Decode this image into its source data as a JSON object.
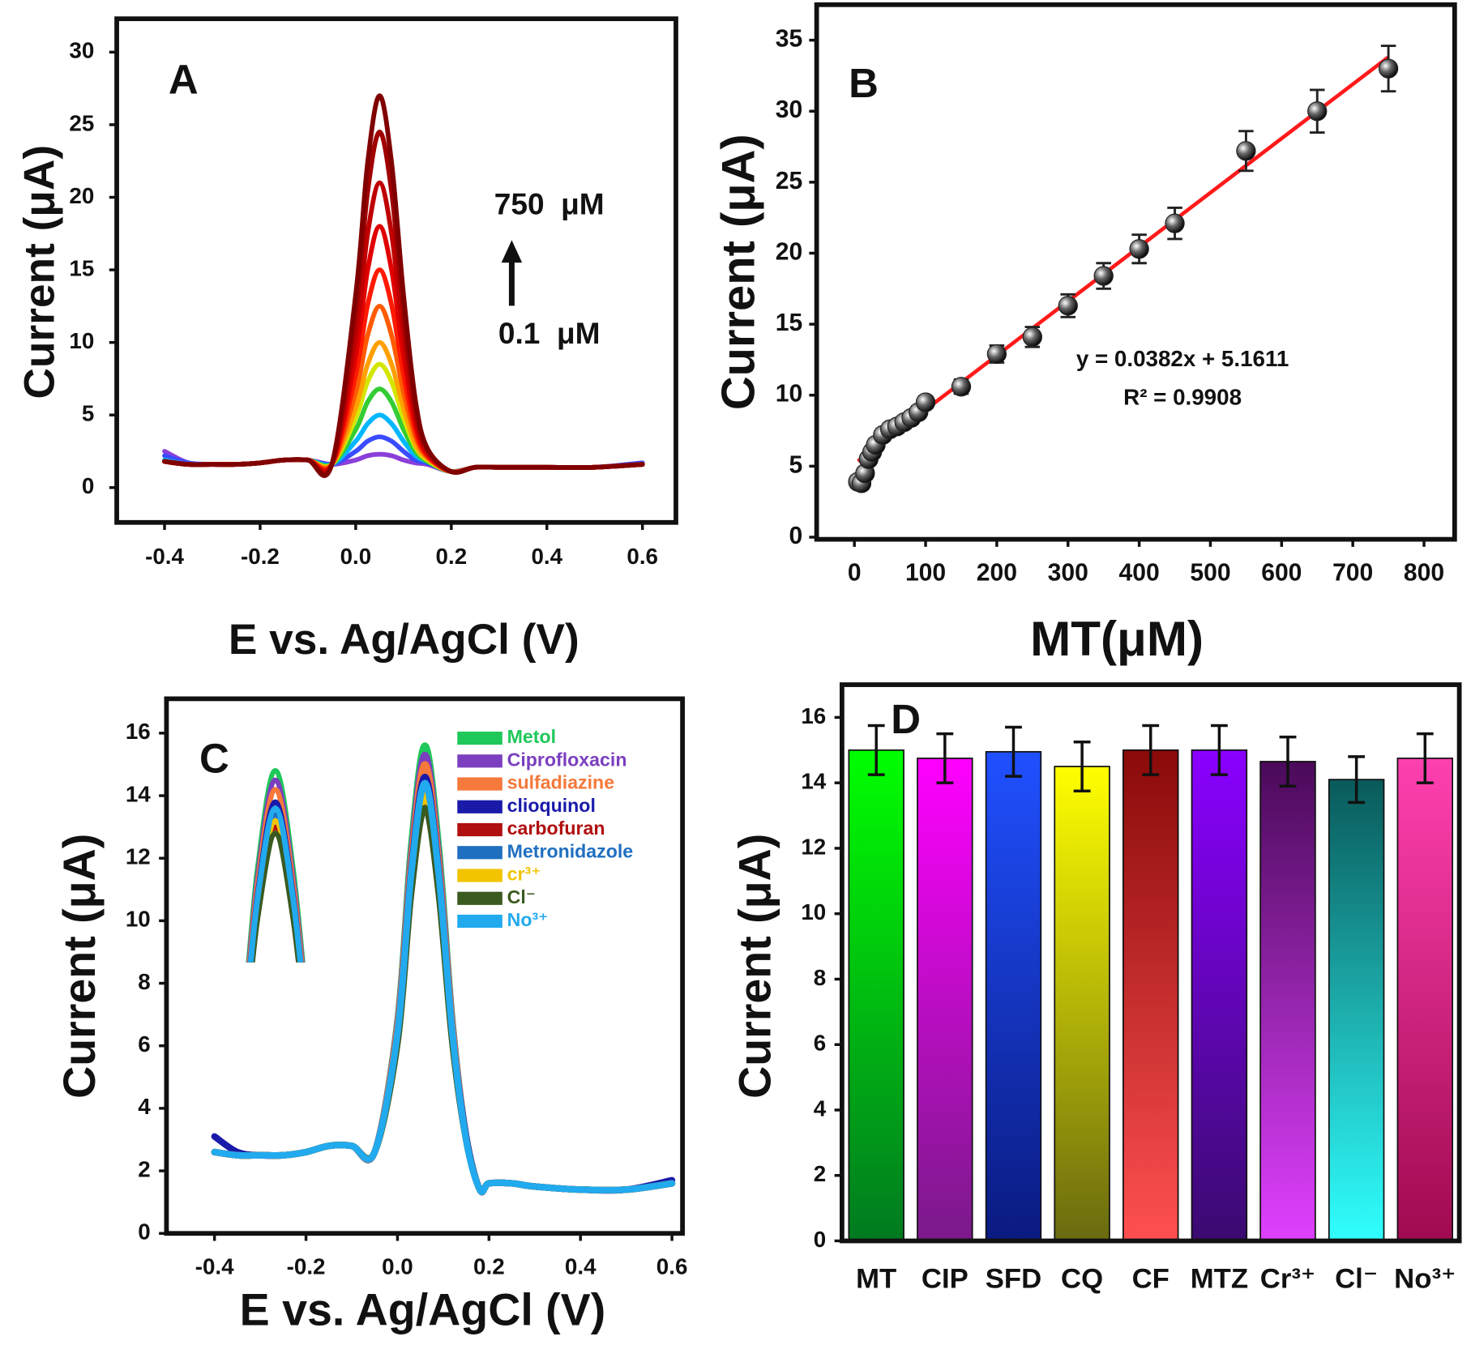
{
  "chart_data": [
    {
      "type": "line",
      "panel_label": "A",
      "x_label": "E vs. Ag/AgCl (V)",
      "y_label": "Current (μA)",
      "annotations": [
        "750  μM",
        "0.1  μM"
      ],
      "xlim": [
        -0.5,
        0.67
      ],
      "ylim": [
        -2.4,
        32.3
      ],
      "xticks": [
        -0.4,
        -0.2,
        {
          "value": 0,
          "label": "0.0"
        },
        0.2,
        0.4,
        0.6
      ],
      "yticks": [
        0,
        5,
        10,
        15,
        20,
        25,
        30
      ],
      "x": [
        -0.4,
        -0.35,
        -0.3,
        -0.25,
        -0.2,
        -0.15,
        -0.1,
        -0.05,
        0,
        0.025,
        0.05,
        0.075,
        0.1,
        0.125,
        0.15,
        0.2,
        0.25,
        0.3,
        0.4,
        0.5,
        0.6
      ],
      "series": [
        {
          "color": "#8b3fd9",
          "values": [
            2.5,
            1.7,
            1.6,
            1.6,
            1.7,
            1.9,
            1.9,
            1.6,
            1.9,
            2.2,
            2.3,
            2.2,
            1.9,
            1.7,
            1.6,
            1.1,
            1.4,
            1.4,
            1.4,
            1.4,
            1.7
          ]
        },
        {
          "color": "#3a4cff",
          "values": [
            2.2,
            1.7,
            1.6,
            1.6,
            1.7,
            1.9,
            1.9,
            1.6,
            2.5,
            3.2,
            3.5,
            3.2,
            2.5,
            1.9,
            1.7,
            1.1,
            1.4,
            1.4,
            1.4,
            1.4,
            1.7
          ]
        },
        {
          "color": "#00b7ff",
          "values": [
            1.9,
            1.6,
            1.6,
            1.6,
            1.7,
            1.9,
            1.9,
            1.6,
            3.2,
            4.4,
            5,
            4.4,
            3.2,
            2.2,
            1.8,
            1.1,
            1.4,
            1.4,
            1.4,
            1.4,
            1.6
          ]
        },
        {
          "color": "#33cc33",
          "values": [
            1.8,
            1.6,
            1.6,
            1.6,
            1.7,
            1.9,
            1.9,
            1.6,
            4.0,
            5.9,
            6.8,
            5.9,
            4.0,
            2.5,
            1.8,
            1.1,
            1.4,
            1.4,
            1.4,
            1.4,
            1.6
          ]
        },
        {
          "color": "#d4e600",
          "values": [
            1.8,
            1.6,
            1.6,
            1.6,
            1.7,
            1.9,
            1.9,
            1.6,
            4.8,
            7.3,
            8.5,
            7.3,
            4.8,
            2.8,
            1.9,
            1.1,
            1.4,
            1.4,
            1.4,
            1.4,
            1.6
          ]
        },
        {
          "color": "#ffa000",
          "values": [
            1.8,
            1.6,
            1.6,
            1.6,
            1.7,
            1.9,
            1.9,
            1.6,
            5.5,
            8.5,
            10,
            8.5,
            5.5,
            3.0,
            2.0,
            1.1,
            1.4,
            1.4,
            1.4,
            1.4,
            1.6
          ]
        },
        {
          "color": "#ff5a00",
          "values": [
            1.8,
            1.6,
            1.6,
            1.6,
            1.7,
            1.9,
            1.9,
            1.6,
            6.6,
            10.5,
            12.5,
            10.5,
            6.6,
            3.5,
            2.1,
            1.1,
            1.4,
            1.4,
            1.4,
            1.4,
            1.6
          ]
        },
        {
          "color": "#ff1a00",
          "values": [
            1.8,
            1.6,
            1.6,
            1.6,
            1.7,
            1.9,
            1.9,
            1.6,
            7.8,
            12.6,
            15,
            12.6,
            7.8,
            3.9,
            2.2,
            1.1,
            1.4,
            1.4,
            1.4,
            1.4,
            1.6
          ]
        },
        {
          "color": "#e00000",
          "values": [
            1.8,
            1.6,
            1.6,
            1.6,
            1.7,
            1.9,
            1.9,
            1.6,
            9.1,
            15.0,
            18,
            15.0,
            9.1,
            4.4,
            2.3,
            1.1,
            1.4,
            1.4,
            1.4,
            1.4,
            1.6
          ]
        },
        {
          "color": "#c00000",
          "values": [
            1.8,
            1.6,
            1.6,
            1.6,
            1.7,
            1.9,
            1.9,
            1.6,
            10.5,
            17.5,
            21,
            17.5,
            10.5,
            4.9,
            2.5,
            1.1,
            1.4,
            1.4,
            1.4,
            1.4,
            1.6
          ]
        },
        {
          "color": "#a00000",
          "values": [
            1.8,
            1.6,
            1.6,
            1.6,
            1.7,
            1.9,
            1.9,
            1.6,
            12.1,
            20.4,
            24.5,
            20.4,
            12.1,
            5.5,
            2.6,
            1.1,
            1.4,
            1.4,
            1.4,
            1.4,
            1.6
          ]
        },
        {
          "color": "#800000",
          "values": [
            1.8,
            1.6,
            1.6,
            1.6,
            1.7,
            1.9,
            1.9,
            1.6,
            13.3,
            22.4,
            27,
            22.4,
            13.3,
            6.0,
            2.7,
            1.1,
            1.4,
            1.4,
            1.4,
            1.4,
            1.6
          ]
        }
      ]
    },
    {
      "type": "scatter",
      "panel_label": "B",
      "x_label": "MT(μM)",
      "y_label": "Current (μA)",
      "annotations": [
        "y = 0.0382x + 5.1611",
        "R² = 0.9908"
      ],
      "xlim": [
        -53,
        843
      ],
      "ylim": [
        -0.15,
        37.5
      ],
      "xticks": [
        0,
        100,
        200,
        300,
        400,
        500,
        600,
        700,
        800
      ],
      "yticks": [
        0,
        5,
        10,
        15,
        20,
        25,
        30,
        35
      ],
      "color": "#222222",
      "x": [
        5,
        10,
        15,
        20,
        25,
        30,
        40,
        50,
        60,
        70,
        80,
        90,
        100,
        150,
        200,
        250,
        300,
        350,
        400,
        450,
        550,
        650,
        750
      ],
      "values": [
        3.9,
        3.8,
        4.5,
        5.5,
        6,
        6.5,
        7.2,
        7.6,
        7.8,
        8.1,
        8.4,
        8.8,
        9.5,
        10.6,
        12.9,
        14.1,
        16.3,
        18.4,
        20.3,
        22.1,
        27.2,
        30,
        33
      ],
      "errors": [
        0.4,
        0.4,
        0.4,
        0.4,
        0.4,
        0.4,
        0.4,
        0.4,
        0.4,
        0.4,
        0.4,
        0.4,
        0.4,
        0.5,
        0.6,
        0.7,
        0.8,
        0.9,
        1.0,
        1.1,
        1.4,
        1.5,
        1.6
      ],
      "fit": {
        "color": "#ff1a1a",
        "x": [
          5,
          750
        ],
        "values": [
          5.35,
          33.81
        ]
      }
    },
    {
      "type": "line",
      "panel_label": "C",
      "x_label": "E vs. Ag/AgCl (V)",
      "y_label": "Current (μA)",
      "xlim": [
        -0.505,
        0.623
      ],
      "ylim": [
        0,
        17.1
      ],
      "xticks": [
        -0.4,
        -0.2,
        {
          "value": 0,
          "label": "0.0"
        },
        0.2,
        0.4,
        0.6
      ],
      "yticks": [
        0,
        2,
        4,
        6,
        8,
        10,
        12,
        14,
        16
      ],
      "legend": true,
      "inset": true,
      "x": [
        -0.4,
        -0.35,
        -0.3,
        -0.25,
        -0.2,
        -0.15,
        -0.1,
        -0.05,
        0,
        0.03,
        0.06,
        0.09,
        0.12,
        0.15,
        0.18,
        0.2,
        0.25,
        0.3,
        0.4,
        0.5,
        0.6
      ],
      "series": [
        {
          "name": "Metol",
          "color": "#1fc85a",
          "values": [
            2.6,
            2.5,
            2.5,
            2.5,
            2.6,
            2.8,
            2.8,
            2.6,
            6.8,
            12.4,
            15.6,
            12.4,
            6.8,
            3.1,
            1.4,
            1.6,
            1.6,
            1.5,
            1.4,
            1.4,
            1.6
          ]
        },
        {
          "name": "Ciprofloxacin",
          "color": "#7b3fbf",
          "values": [
            2.6,
            2.5,
            2.5,
            2.5,
            2.6,
            2.8,
            2.8,
            2.6,
            6.7,
            12.1,
            15.3,
            12.1,
            6.7,
            3.1,
            1.4,
            1.6,
            1.6,
            1.5,
            1.4,
            1.4,
            1.6
          ]
        },
        {
          "name": "sulfadiazine",
          "color": "#f5793a",
          "values": [
            2.6,
            2.5,
            2.5,
            2.5,
            2.6,
            2.8,
            2.8,
            2.6,
            6.6,
            11.9,
            15.0,
            11.9,
            6.6,
            3.1,
            1.4,
            1.6,
            1.6,
            1.5,
            1.4,
            1.4,
            1.6
          ]
        },
        {
          "name": "clioquinol",
          "color": "#1a1aaa",
          "values": [
            3.1,
            2.6,
            2.5,
            2.5,
            2.6,
            2.8,
            2.8,
            2.6,
            6.4,
            11.6,
            14.6,
            11.6,
            6.4,
            3.1,
            1.4,
            1.6,
            1.6,
            1.5,
            1.4,
            1.4,
            1.7
          ]
        },
        {
          "name": "carbofuran",
          "color": "#b01010",
          "values": [
            2.6,
            2.5,
            2.5,
            2.5,
            2.6,
            2.8,
            2.8,
            2.6,
            6.2,
            11.0,
            13.8,
            11.0,
            6.2,
            3.0,
            1.4,
            1.6,
            1.6,
            1.5,
            1.4,
            1.4,
            1.6
          ]
        },
        {
          "name": "Metronidazole",
          "color": "#1f6fc0",
          "values": [
            2.6,
            2.5,
            2.5,
            2.5,
            2.6,
            2.8,
            2.8,
            2.6,
            6.3,
            11.3,
            14.2,
            11.3,
            6.3,
            3.0,
            1.4,
            1.6,
            1.6,
            1.5,
            1.4,
            1.4,
            1.6
          ]
        },
        {
          "name": "cr³⁺",
          "color": "#f2c400",
          "values": [
            2.6,
            2.5,
            2.5,
            2.5,
            2.6,
            2.8,
            2.8,
            2.6,
            6.2,
            11.2,
            14.0,
            11.2,
            6.2,
            3.0,
            1.4,
            1.6,
            1.6,
            1.5,
            1.4,
            1.4,
            1.6
          ]
        },
        {
          "name": "Cl⁻",
          "color": "#3a5a20",
          "values": [
            2.6,
            2.5,
            2.5,
            2.5,
            2.6,
            2.8,
            2.8,
            2.6,
            6.1,
            10.9,
            13.6,
            10.9,
            6.1,
            3.0,
            1.4,
            1.6,
            1.6,
            1.5,
            1.4,
            1.4,
            1.6
          ]
        },
        {
          "name": "No³⁺",
          "color": "#22aaee",
          "values": [
            2.6,
            2.5,
            2.5,
            2.5,
            2.6,
            2.8,
            2.8,
            2.6,
            6.4,
            11.5,
            14.4,
            11.5,
            6.4,
            3.0,
            1.4,
            1.6,
            1.6,
            1.5,
            1.4,
            1.4,
            1.6
          ]
        }
      ]
    },
    {
      "type": "bar",
      "panel_label": "D",
      "y_label": "Current (μA)",
      "ylim": [
        0,
        17
      ],
      "yticks": [
        0,
        2,
        4,
        6,
        8,
        10,
        12,
        14,
        16
      ],
      "categories": [
        "MT",
        "CIP",
        "SFD",
        "CQ",
        "CF",
        "MTZ",
        "Cr³⁺",
        "Cl⁻",
        "No³⁺"
      ],
      "values": [
        15,
        14.75,
        14.95,
        14.5,
        15,
        15,
        14.65,
        14.1,
        14.75
      ],
      "errors": [
        0.75,
        0.75,
        0.75,
        0.75,
        0.75,
        0.75,
        0.75,
        0.7,
        0.75
      ],
      "colors": [
        [
          "#00ff00",
          "#007a20"
        ],
        [
          "#ff00ff",
          "#7a1a8a"
        ],
        [
          "#2050ff",
          "#0a1a80"
        ],
        [
          "#ffff00",
          "#6a6a10"
        ],
        [
          "#8a0a0a",
          "#ff5050"
        ],
        [
          "#8a00ff",
          "#3a0a70"
        ],
        [
          "#4a0a5a",
          "#e040ff"
        ],
        [
          "#0a5a5a",
          "#30ffff"
        ],
        [
          "#ff40b0",
          "#a00a50"
        ]
      ]
    }
  ]
}
